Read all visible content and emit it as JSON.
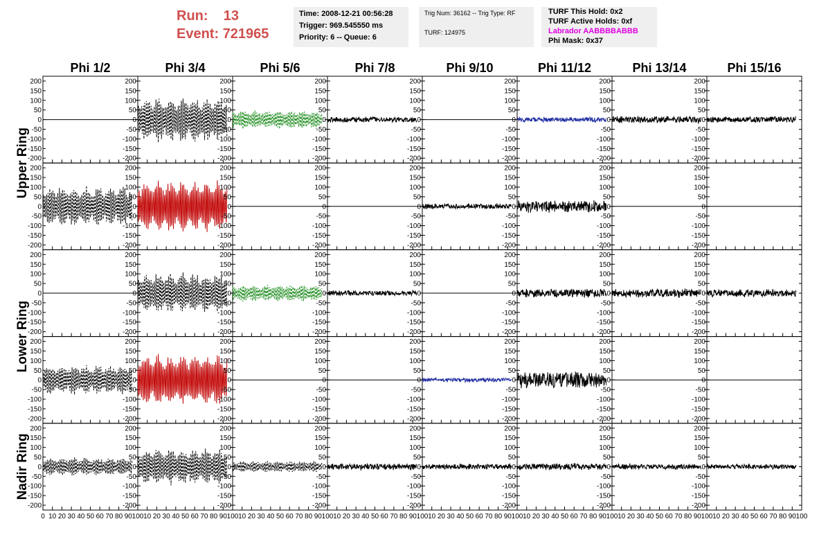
{
  "header": {
    "run_label": "Run:",
    "run_value": "13",
    "event_label": "Event:",
    "event_value": "721965"
  },
  "info_time": {
    "time": "Time: 2008-12-21 00:56:28",
    "trigger": "Trigger: 969.545550 ms",
    "priority": "Priority: 6 -- Queue: 6"
  },
  "info_trig": {
    "trig": "Trig Num: 36162 -- Trig Type: RF",
    "turf": "TURF: 124975"
  },
  "info_turf": {
    "hold": "TURF This Hold: 0x2",
    "active": "TURF Active Holds: 0xf",
    "labrador": "Labrador AABBBBABBB",
    "mask": "Phi Mask: 0x37"
  },
  "chart_data": {
    "type": "line",
    "columns": [
      "Phi 1/2",
      "Phi 3/4",
      "Phi 5/6",
      "Phi 7/8",
      "Phi 9/10",
      "Phi 11/12",
      "Phi 13/14",
      "Phi 15/16"
    ],
    "rows": [
      "Upper Ring",
      "Lower Ring",
      "Nadir Ring"
    ],
    "panels_per_row": [
      2,
      2,
      1
    ],
    "ylim": [
      -225,
      225
    ],
    "yticks": [
      -200,
      -150,
      -100,
      -50,
      0,
      50,
      100,
      150,
      200
    ],
    "xlim": [
      0,
      100
    ],
    "xticks": [
      0,
      10,
      20,
      30,
      40,
      50,
      60,
      70,
      80,
      90,
      100
    ],
    "colors": {
      "black": "#000000",
      "red": "#c00000",
      "green": "#1a8a1a",
      "blue": "#1c2aa0"
    },
    "traces": [
      [
        {
          "amp": 0,
          "style": "flat",
          "color": "black",
          "xend": 100
        },
        {
          "amp": 120,
          "style": "dashed",
          "color": "black",
          "xend": 94
        },
        {
          "amp": 50,
          "style": "dashed",
          "color": "green",
          "xend": 94
        },
        {
          "amp": 15,
          "style": "solid",
          "color": "black",
          "xend": 94
        },
        {
          "amp": 0,
          "style": "flat",
          "color": "black",
          "xend": 100
        },
        {
          "amp": 14,
          "style": "solid",
          "color": "blue",
          "xend": 94
        },
        {
          "amp": 20,
          "style": "solid",
          "color": "black",
          "xend": 94
        },
        {
          "amp": 18,
          "style": "solid",
          "color": "black",
          "xend": 94
        }
      ],
      [
        {
          "amp": 110,
          "style": "dashed",
          "color": "black",
          "xend": 94
        },
        {
          "amp": 140,
          "style": "solid",
          "color": "red",
          "xend": 94
        },
        {
          "amp": 0,
          "style": "flat",
          "color": "black",
          "xend": 100
        },
        {
          "amp": 0,
          "style": "flat",
          "color": "black",
          "xend": 100
        },
        {
          "amp": 15,
          "style": "solid",
          "color": "black",
          "xend": 94
        },
        {
          "amp": 35,
          "style": "solid",
          "color": "black",
          "xend": 94
        },
        {
          "amp": 0,
          "style": "flat",
          "color": "black",
          "xend": 100
        },
        {
          "amp": 0,
          "style": "flat",
          "color": "black",
          "xend": 100
        }
      ],
      [
        {
          "amp": 0,
          "style": "flat",
          "color": "black",
          "xend": 100
        },
        {
          "amp": 110,
          "style": "dashed",
          "color": "black",
          "xend": 94
        },
        {
          "amp": 45,
          "style": "dashed",
          "color": "green",
          "xend": 94
        },
        {
          "amp": 15,
          "style": "solid",
          "color": "black",
          "xend": 94
        },
        {
          "amp": 0,
          "style": "flat",
          "color": "black",
          "xend": 100
        },
        {
          "amp": 25,
          "style": "solid",
          "color": "black",
          "xend": 94
        },
        {
          "amp": 25,
          "style": "solid",
          "color": "black",
          "xend": 94
        },
        {
          "amp": 22,
          "style": "solid",
          "color": "black",
          "xend": 94
        }
      ],
      [
        {
          "amp": 80,
          "style": "dashed",
          "color": "black",
          "xend": 94
        },
        {
          "amp": 140,
          "style": "solid",
          "color": "red",
          "xend": 94
        },
        {
          "amp": 0,
          "style": "flat",
          "color": "black",
          "xend": 100
        },
        {
          "amp": 0,
          "style": "flat",
          "color": "black",
          "xend": 100
        },
        {
          "amp": 12,
          "style": "solid",
          "color": "blue",
          "xend": 94
        },
        {
          "amp": 45,
          "style": "solid",
          "color": "black",
          "xend": 94
        },
        {
          "amp": 0,
          "style": "flat",
          "color": "black",
          "xend": 100
        },
        {
          "amp": 0,
          "style": "flat",
          "color": "black",
          "xend": 100
        }
      ],
      [
        {
          "amp": 50,
          "style": "dashed",
          "color": "black",
          "xend": 94
        },
        {
          "amp": 100,
          "style": "dashed",
          "color": "black",
          "xend": 94
        },
        {
          "amp": 30,
          "style": "dashed",
          "color": "black",
          "xend": 94
        },
        {
          "amp": 18,
          "style": "solid",
          "color": "black",
          "xend": 94
        },
        {
          "amp": 16,
          "style": "solid",
          "color": "black",
          "xend": 94
        },
        {
          "amp": 20,
          "style": "solid",
          "color": "black",
          "xend": 94
        },
        {
          "amp": 16,
          "style": "solid",
          "color": "black",
          "xend": 94
        },
        {
          "amp": 14,
          "style": "solid",
          "color": "black",
          "xend": 94
        }
      ]
    ]
  }
}
